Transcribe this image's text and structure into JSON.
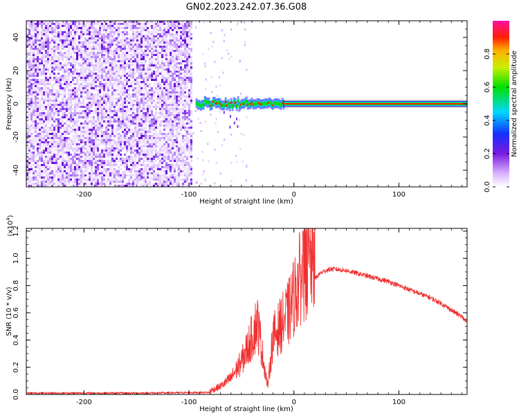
{
  "title": "GN02.2023.242.07.36.G08",
  "colors": {
    "snr_line": "#f03030",
    "ridge_core": "#ff2200",
    "ridge_mid": "#00e000",
    "ridge_edge": "#0030ff",
    "noise_dark": "#7a1ae0",
    "noise_light": "#d7b8f8"
  },
  "chart_data": [
    {
      "type": "heatmap",
      "xlabel": "Height of straight line (km)",
      "ylabel": "Frequency (Hz)",
      "xlim": [
        -255,
        165
      ],
      "ylim": [
        -50,
        50
      ],
      "xticks": [
        -200,
        -100,
        0,
        100
      ],
      "yticks": [
        -40,
        -20,
        0,
        20,
        40
      ],
      "xtick_labels": [
        "-200",
        "-100",
        "0",
        "100"
      ],
      "ytick_labels": [
        "-40",
        "-20",
        "0",
        "20",
        "40"
      ],
      "grid": false,
      "noise_region_x": [
        -255,
        -97
      ],
      "signal_center_freq": 0,
      "signal_start_x": -97,
      "colorbar": {
        "label": "Normalized spectral amplitude",
        "range": [
          0,
          1
        ],
        "ticks": [
          0.0,
          0.2,
          0.4,
          0.6,
          0.8
        ],
        "tick_labels": [
          "0.0",
          "0.2",
          "0.4",
          "0.6",
          "0.8"
        ],
        "colormap": "rainbow (white-violet-blue-cyan-green-yellow-red-magenta)"
      }
    },
    {
      "type": "line",
      "xlabel": "Height of straight line (km)",
      "ylabel": "SNR (10 * v/v)",
      "y_multiplier_label": "(x10",
      "y_multiplier_exp": "4",
      "y_multiplier_close": ")",
      "xlim": [
        -255,
        165
      ],
      "ylim": [
        0,
        1.22
      ],
      "xticks": [
        -200,
        -100,
        0,
        100
      ],
      "yticks": [
        0.0,
        0.2,
        0.4,
        0.6,
        0.8,
        1.0,
        1.2
      ],
      "xtick_labels": [
        "-200",
        "-100",
        "0",
        "100"
      ],
      "ytick_labels": [
        "0.0",
        "0.2",
        "0.4",
        "0.6",
        "0.8",
        "1.0",
        "1.2"
      ],
      "grid": false,
      "series": [
        {
          "x": [
            -255,
            -150,
            -80,
            -70,
            -60,
            -50,
            -40,
            -35,
            -30,
            -25,
            -20,
            -15,
            -10,
            -5,
            0,
            5,
            10,
            15,
            20,
            25,
            30,
            35,
            40,
            50,
            60,
            70,
            80,
            90,
            100,
            110,
            120,
            130,
            140,
            150,
            160,
            165
          ],
          "values": [
            0.01,
            0.01,
            0.015,
            0.05,
            0.1,
            0.2,
            0.35,
            0.45,
            0.25,
            0.05,
            0.35,
            0.4,
            0.45,
            0.5,
            0.6,
            0.7,
            0.75,
            0.8,
            0.85,
            0.89,
            0.91,
            0.92,
            0.92,
            0.91,
            0.89,
            0.87,
            0.85,
            0.83,
            0.8,
            0.77,
            0.74,
            0.71,
            0.67,
            0.62,
            0.57,
            0.53
          ]
        }
      ]
    }
  ]
}
